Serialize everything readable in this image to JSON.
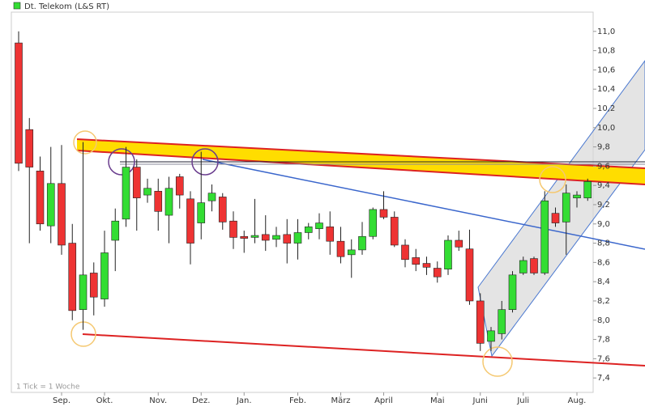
{
  "chart_data": {
    "type": "candlestick",
    "title": "Dt. Telekom (L&S RT)",
    "note": "1 Tick = 1 Woche",
    "up_color": "#33dd33",
    "down_color": "#ee3333",
    "categories": [
      null,
      null,
      null,
      null,
      "Sep.",
      null,
      null,
      null,
      "Okt.",
      null,
      null,
      null,
      null,
      "Nov.",
      null,
      null,
      null,
      "Dez.",
      null,
      null,
      null,
      "Jan.",
      null,
      null,
      null,
      null,
      "Feb.",
      null,
      null,
      null,
      "März",
      null,
      null,
      null,
      "April",
      null,
      null,
      null,
      null,
      "Mai",
      null,
      null,
      null,
      "Juni",
      null,
      null,
      null,
      "Juli",
      null,
      null,
      null,
      null,
      "Aug.",
      null
    ],
    "open": [
      10.88,
      9.98,
      9.55,
      8.98,
      9.42,
      8.8,
      8.11,
      8.49,
      8.22,
      8.83,
      9.05,
      9.59,
      9.3,
      9.34,
      9.09,
      9.49,
      9.26,
      9.01,
      9.24,
      9.28,
      9.03,
      8.87,
      8.86,
      8.89,
      8.84,
      8.89,
      8.8,
      8.91,
      8.95,
      8.97,
      8.82,
      8.68,
      8.73,
      8.87,
      9.15,
      9.07,
      8.78,
      8.65,
      8.59,
      8.54,
      8.53,
      8.83,
      8.74,
      8.2,
      7.78,
      7.86,
      8.11,
      8.49,
      8.64,
      8.49,
      9.11,
      9.02,
      9.27,
      9.27
    ],
    "high": [
      11.0,
      10.1,
      9.7,
      9.8,
      9.82,
      9.0,
      9.85,
      8.6,
      8.93,
      9.16,
      9.8,
      9.67,
      9.47,
      9.47,
      9.49,
      9.52,
      9.34,
      9.75,
      9.41,
      9.32,
      9.13,
      8.93,
      9.26,
      9.09,
      8.97,
      9.05,
      9.05,
      9.01,
      9.11,
      9.13,
      8.97,
      8.84,
      9.02,
      9.17,
      9.34,
      9.13,
      8.84,
      8.74,
      8.66,
      8.61,
      8.88,
      8.93,
      8.94,
      8.28,
      7.93,
      8.2,
      8.51,
      8.66,
      8.66,
      9.34,
      9.17,
      9.41,
      9.34,
      9.47
    ],
    "low": [
      9.55,
      8.8,
      8.93,
      8.8,
      8.68,
      8.0,
      7.9,
      8.05,
      8.14,
      8.51,
      8.97,
      8.93,
      9.22,
      8.93,
      8.8,
      9.16,
      8.58,
      8.84,
      9.13,
      8.94,
      8.74,
      8.7,
      8.8,
      8.72,
      8.76,
      8.59,
      8.63,
      8.84,
      8.84,
      8.68,
      8.59,
      8.44,
      8.68,
      8.84,
      9.05,
      8.76,
      8.55,
      8.51,
      8.47,
      8.39,
      8.47,
      8.72,
      8.16,
      7.68,
      7.68,
      7.8,
      8.08,
      8.47,
      8.47,
      8.47,
      8.97,
      8.68,
      9.17,
      9.24
    ],
    "close": [
      9.63,
      9.59,
      9.0,
      9.42,
      8.78,
      8.1,
      8.47,
      8.24,
      8.7,
      9.03,
      9.59,
      9.27,
      9.37,
      9.13,
      9.37,
      9.3,
      8.8,
      9.22,
      9.32,
      9.02,
      8.86,
      8.85,
      8.88,
      8.83,
      8.88,
      8.8,
      8.91,
      8.97,
      9.01,
      8.82,
      8.66,
      8.73,
      8.87,
      9.15,
      9.07,
      8.78,
      8.63,
      8.58,
      8.55,
      8.45,
      8.83,
      8.76,
      8.2,
      7.76,
      7.89,
      8.11,
      8.47,
      8.62,
      8.49,
      9.24,
      9.01,
      9.32,
      9.3,
      9.44
    ],
    "ylim": [
      7.25,
      11.2
    ],
    "yticks": [
      {
        "value": 7.4,
        "label": "7,4"
      },
      {
        "value": 7.6,
        "label": "7,6"
      },
      {
        "value": 7.8,
        "label": "7,8"
      },
      {
        "value": 8.0,
        "label": "8,0"
      },
      {
        "value": 8.2,
        "label": "8,2"
      },
      {
        "value": 8.4,
        "label": "8,4"
      },
      {
        "value": 8.6,
        "label": "8,6"
      },
      {
        "value": 8.8,
        "label": "8,8"
      },
      {
        "value": 9.0,
        "label": "9,0"
      },
      {
        "value": 9.2,
        "label": "9,2"
      },
      {
        "value": 9.4,
        "label": "9,4"
      },
      {
        "value": 9.6,
        "label": "9,6"
      },
      {
        "value": 9.8,
        "label": "9,8"
      },
      {
        "value": 10.0,
        "label": "10,0"
      },
      {
        "value": 10.2,
        "label": "10,2"
      },
      {
        "value": 10.4,
        "label": "10,4"
      },
      {
        "value": 10.6,
        "label": "10,6"
      },
      {
        "value": 10.8,
        "label": "10,8"
      },
      {
        "value": 11.0,
        "label": "11,0"
      }
    ]
  }
}
